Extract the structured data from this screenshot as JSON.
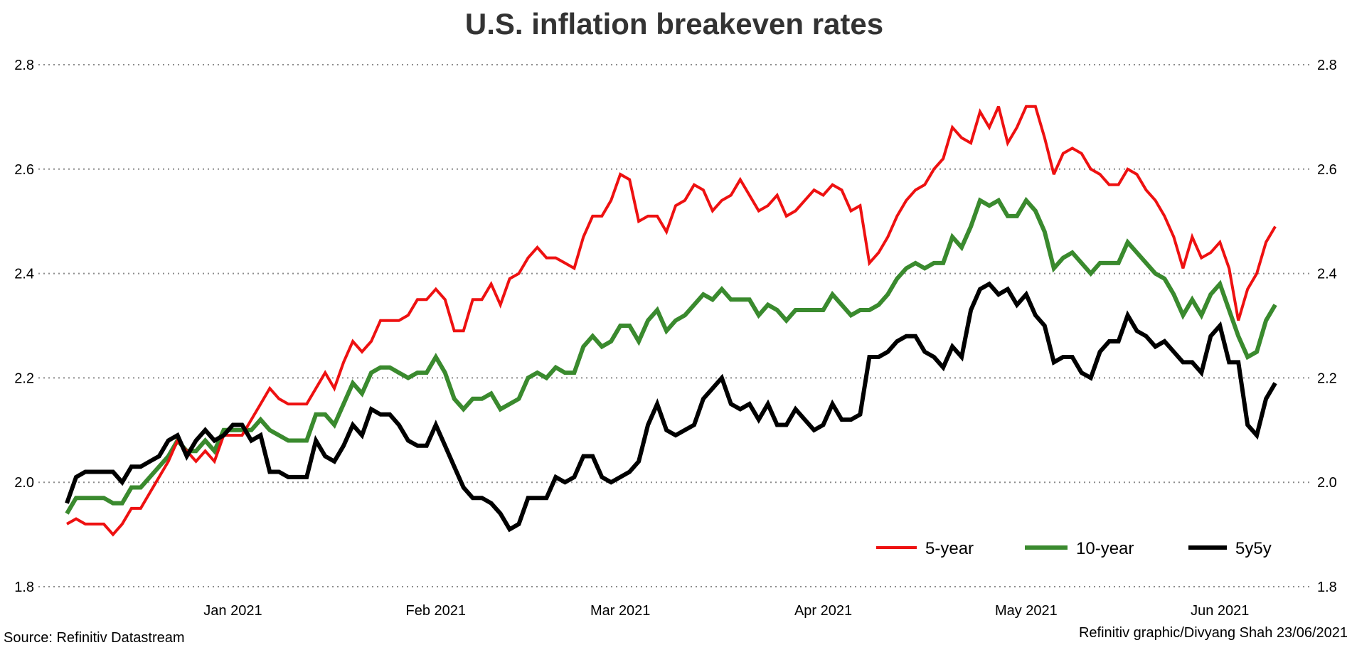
{
  "chart_data": {
    "type": "line",
    "title": "U.S. inflation breakeven rates",
    "xlabel": "",
    "ylabel": "",
    "ylim": [
      1.8,
      2.8
    ],
    "yticks": [
      "1.8",
      "2.0",
      "2.2",
      "2.4",
      "2.6",
      "2.8"
    ],
    "y_axis_sides": "left and right",
    "grid": "horizontal dotted",
    "legend_position": "bottom-right",
    "xtick_labels": [
      "Jan 2021",
      "Feb 2021",
      "Mar 2021",
      "Apr 2021",
      "May 2021",
      "Jun 2021"
    ],
    "x": [
      "2020-12-21",
      "2020-12-22",
      "2020-12-23",
      "2020-12-24",
      "2020-12-25",
      "2020-12-28",
      "2020-12-29",
      "2020-12-30",
      "2020-12-31",
      "2021-01-01",
      "2021-01-04",
      "2021-01-05",
      "2021-01-06",
      "2021-01-07",
      "2021-01-08",
      "2021-01-11",
      "2021-01-12",
      "2021-01-13",
      "2021-01-14",
      "2021-01-15",
      "2021-01-18",
      "2021-01-19",
      "2021-01-20",
      "2021-01-21",
      "2021-01-22",
      "2021-01-25",
      "2021-01-26",
      "2021-01-27",
      "2021-01-28",
      "2021-01-29",
      "2021-02-01",
      "2021-02-02",
      "2021-02-03",
      "2021-02-04",
      "2021-02-05",
      "2021-02-08",
      "2021-02-09",
      "2021-02-10",
      "2021-02-11",
      "2021-02-12",
      "2021-02-15",
      "2021-02-16",
      "2021-02-17",
      "2021-02-18",
      "2021-02-19",
      "2021-02-22",
      "2021-02-23",
      "2021-02-24",
      "2021-02-25",
      "2021-02-26",
      "2021-03-01",
      "2021-03-02",
      "2021-03-03",
      "2021-03-04",
      "2021-03-05",
      "2021-03-08",
      "2021-03-09",
      "2021-03-10",
      "2021-03-11",
      "2021-03-12",
      "2021-03-15",
      "2021-03-16",
      "2021-03-17",
      "2021-03-18",
      "2021-03-19",
      "2021-03-22",
      "2021-03-23",
      "2021-03-24",
      "2021-03-25",
      "2021-03-26",
      "2021-03-29",
      "2021-03-30",
      "2021-03-31",
      "2021-04-01",
      "2021-04-02",
      "2021-04-05",
      "2021-04-06",
      "2021-04-07",
      "2021-04-08",
      "2021-04-09",
      "2021-04-12",
      "2021-04-13",
      "2021-04-14",
      "2021-04-15",
      "2021-04-16",
      "2021-04-19",
      "2021-04-20",
      "2021-04-21",
      "2021-04-22",
      "2021-04-23",
      "2021-04-26",
      "2021-04-27",
      "2021-04-28",
      "2021-04-29",
      "2021-04-30",
      "2021-05-03",
      "2021-05-04",
      "2021-05-05",
      "2021-05-06",
      "2021-05-07",
      "2021-05-10",
      "2021-05-11",
      "2021-05-12",
      "2021-05-13",
      "2021-05-14",
      "2021-05-17",
      "2021-05-18",
      "2021-05-19",
      "2021-05-20",
      "2021-05-21",
      "2021-05-24",
      "2021-05-25",
      "2021-05-26",
      "2021-05-27",
      "2021-05-28",
      "2021-05-31",
      "2021-06-01",
      "2021-06-02",
      "2021-06-03",
      "2021-06-04",
      "2021-06-07",
      "2021-06-08",
      "2021-06-09",
      "2021-06-10",
      "2021-06-11",
      "2021-06-14",
      "2021-06-15",
      "2021-06-16",
      "2021-06-17",
      "2021-06-18",
      "2021-06-21",
      "2021-06-22"
    ],
    "series": [
      {
        "name": "5-year",
        "color": "#ee1111",
        "values": [
          1.92,
          1.93,
          1.92,
          1.92,
          1.92,
          1.9,
          1.92,
          1.95,
          1.95,
          1.98,
          2.01,
          2.04,
          2.08,
          2.06,
          2.04,
          2.06,
          2.04,
          2.09,
          2.09,
          2.09,
          2.12,
          2.15,
          2.18,
          2.16,
          2.15,
          2.15,
          2.15,
          2.18,
          2.21,
          2.18,
          2.23,
          2.27,
          2.25,
          2.27,
          2.31,
          2.31,
          2.31,
          2.32,
          2.35,
          2.35,
          2.37,
          2.35,
          2.29,
          2.29,
          2.35,
          2.35,
          2.38,
          2.34,
          2.39,
          2.4,
          2.43,
          2.45,
          2.43,
          2.43,
          2.42,
          2.41,
          2.47,
          2.51,
          2.51,
          2.54,
          2.59,
          2.58,
          2.5,
          2.51,
          2.51,
          2.48,
          2.53,
          2.54,
          2.57,
          2.56,
          2.52,
          2.54,
          2.55,
          2.58,
          2.55,
          2.52,
          2.53,
          2.55,
          2.51,
          2.52,
          2.54,
          2.56,
          2.55,
          2.57,
          2.56,
          2.52,
          2.53,
          2.42,
          2.44,
          2.47,
          2.51,
          2.54,
          2.56,
          2.57,
          2.6,
          2.62,
          2.68,
          2.66,
          2.65,
          2.71,
          2.68,
          2.72,
          2.65,
          2.68,
          2.72,
          2.72,
          2.66,
          2.59,
          2.63,
          2.64,
          2.63,
          2.6,
          2.59,
          2.57,
          2.57,
          2.6,
          2.59,
          2.56,
          2.54,
          2.51,
          2.47,
          2.41,
          2.47,
          2.43,
          2.44,
          2.46,
          2.41,
          2.31,
          2.37,
          2.4,
          2.46,
          2.49
        ]
      },
      {
        "name": "10-year",
        "color": "#3a8a2e",
        "values": [
          1.94,
          1.97,
          1.97,
          1.97,
          1.97,
          1.96,
          1.96,
          1.99,
          1.99,
          2.01,
          2.03,
          2.05,
          2.08,
          2.06,
          2.06,
          2.08,
          2.06,
          2.1,
          2.1,
          2.1,
          2.1,
          2.12,
          2.1,
          2.09,
          2.08,
          2.08,
          2.08,
          2.13,
          2.13,
          2.11,
          2.15,
          2.19,
          2.17,
          2.21,
          2.22,
          2.22,
          2.21,
          2.2,
          2.21,
          2.21,
          2.24,
          2.21,
          2.16,
          2.14,
          2.16,
          2.16,
          2.17,
          2.14,
          2.15,
          2.16,
          2.2,
          2.21,
          2.2,
          2.22,
          2.21,
          2.21,
          2.26,
          2.28,
          2.26,
          2.27,
          2.3,
          2.3,
          2.27,
          2.31,
          2.33,
          2.29,
          2.31,
          2.32,
          2.34,
          2.36,
          2.35,
          2.37,
          2.35,
          2.35,
          2.35,
          2.32,
          2.34,
          2.33,
          2.31,
          2.33,
          2.33,
          2.33,
          2.33,
          2.36,
          2.34,
          2.32,
          2.33,
          2.33,
          2.34,
          2.36,
          2.39,
          2.41,
          2.42,
          2.41,
          2.42,
          2.42,
          2.47,
          2.45,
          2.49,
          2.54,
          2.53,
          2.54,
          2.51,
          2.51,
          2.54,
          2.52,
          2.48,
          2.41,
          2.43,
          2.44,
          2.42,
          2.4,
          2.42,
          2.42,
          2.42,
          2.46,
          2.44,
          2.42,
          2.4,
          2.39,
          2.36,
          2.32,
          2.35,
          2.32,
          2.36,
          2.38,
          2.33,
          2.28,
          2.24,
          2.25,
          2.31,
          2.34
        ]
      },
      {
        "name": "5y5y",
        "color": "#000000",
        "values": [
          1.96,
          2.01,
          2.02,
          2.02,
          2.02,
          2.02,
          2.0,
          2.03,
          2.03,
          2.04,
          2.05,
          2.08,
          2.09,
          2.05,
          2.08,
          2.1,
          2.08,
          2.09,
          2.11,
          2.11,
          2.08,
          2.09,
          2.02,
          2.02,
          2.01,
          2.01,
          2.01,
          2.08,
          2.05,
          2.04,
          2.07,
          2.11,
          2.09,
          2.14,
          2.13,
          2.13,
          2.11,
          2.08,
          2.07,
          2.07,
          2.11,
          2.07,
          2.03,
          1.99,
          1.97,
          1.97,
          1.96,
          1.94,
          1.91,
          1.92,
          1.97,
          1.97,
          1.97,
          2.01,
          2.0,
          2.01,
          2.05,
          2.05,
          2.01,
          2.0,
          2.01,
          2.02,
          2.04,
          2.11,
          2.15,
          2.1,
          2.09,
          2.1,
          2.11,
          2.16,
          2.18,
          2.2,
          2.15,
          2.14,
          2.15,
          2.12,
          2.15,
          2.11,
          2.11,
          2.14,
          2.12,
          2.1,
          2.11,
          2.15,
          2.12,
          2.12,
          2.13,
          2.24,
          2.24,
          2.25,
          2.27,
          2.28,
          2.28,
          2.25,
          2.24,
          2.22,
          2.26,
          2.24,
          2.33,
          2.37,
          2.38,
          2.36,
          2.37,
          2.34,
          2.36,
          2.32,
          2.3,
          2.23,
          2.24,
          2.24,
          2.21,
          2.2,
          2.25,
          2.27,
          2.27,
          2.32,
          2.29,
          2.28,
          2.26,
          2.27,
          2.25,
          2.23,
          2.23,
          2.21,
          2.28,
          2.3,
          2.23,
          2.23,
          2.11,
          2.09,
          2.16,
          2.19
        ]
      }
    ]
  },
  "footer": {
    "source": "Source: Refinitiv Datastream",
    "credit": "Refinitiv graphic/Divyang Shah 23/06/2021"
  }
}
